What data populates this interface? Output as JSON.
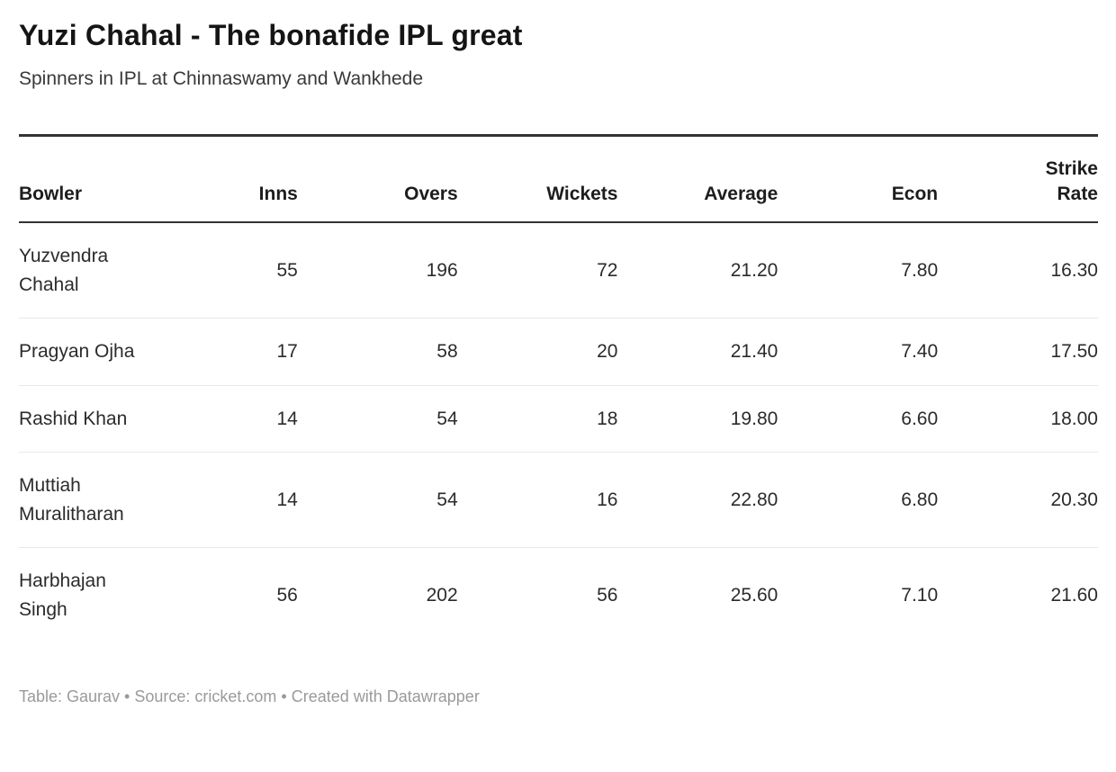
{
  "header": {
    "title": "Yuzi Chahal - The bonafide IPL great",
    "subtitle": "Spinners in IPL at Chinnaswamy and Wankhede"
  },
  "table": {
    "columns": [
      {
        "label": "Bowler"
      },
      {
        "label": "Inns"
      },
      {
        "label": "Overs"
      },
      {
        "label": "Wickets"
      },
      {
        "label": "Average"
      },
      {
        "label": "Econ"
      },
      {
        "label": "Strike Rate"
      }
    ],
    "rows": [
      {
        "bowler": "Yuzvendra Chahal",
        "inns": "55",
        "overs": "196",
        "wickets": "72",
        "average": "21.20",
        "econ": "7.80",
        "strike_rate": "16.30"
      },
      {
        "bowler": "Pragyan Ojha",
        "inns": "17",
        "overs": "58",
        "wickets": "20",
        "average": "21.40",
        "econ": "7.40",
        "strike_rate": "17.50"
      },
      {
        "bowler": "Rashid Khan",
        "inns": "14",
        "overs": "54",
        "wickets": "18",
        "average": "19.80",
        "econ": "6.60",
        "strike_rate": "18.00"
      },
      {
        "bowler": "Muttiah Muralitharan",
        "inns": "14",
        "overs": "54",
        "wickets": "16",
        "average": "22.80",
        "econ": "6.80",
        "strike_rate": "20.30"
      },
      {
        "bowler": "Harbhajan Singh",
        "inns": "56",
        "overs": "202",
        "wickets": "56",
        "average": "25.60",
        "econ": "7.10",
        "strike_rate": "21.60"
      }
    ]
  },
  "footer": {
    "credits": "Table: Gaurav • Source: cricket.com • Created with Datawrapper"
  },
  "colors": {
    "title_text": "#151515",
    "body_text": "#2b2b2b",
    "rule_dark": "#333333",
    "row_divider": "#e8e8e8",
    "footer_text": "#9a9a9a",
    "background": "#ffffff"
  },
  "chart_data": {
    "type": "table",
    "title": "Yuzi Chahal - The bonafide IPL great",
    "subtitle": "Spinners in IPL at Chinnaswamy and Wankhede",
    "columns": [
      "Bowler",
      "Inns",
      "Overs",
      "Wickets",
      "Average",
      "Econ",
      "Strike Rate"
    ],
    "rows": [
      [
        "Yuzvendra Chahal",
        55,
        196,
        72,
        21.2,
        7.8,
        16.3
      ],
      [
        "Pragyan Ojha",
        17,
        58,
        20,
        21.4,
        7.4,
        17.5
      ],
      [
        "Rashid Khan",
        14,
        54,
        18,
        19.8,
        6.6,
        18.0
      ],
      [
        "Muttiah Muralitharan",
        14,
        54,
        16,
        22.8,
        6.8,
        20.3
      ],
      [
        "Harbhajan Singh",
        56,
        202,
        56,
        25.6,
        7.1,
        21.6
      ]
    ],
    "footer": "Table: Gaurav • Source: cricket.com • Created with Datawrapper",
    "layout_hints": {
      "header_align": "right_except_first",
      "grid": "horizontal_row_dividers",
      "legend": "none"
    }
  }
}
